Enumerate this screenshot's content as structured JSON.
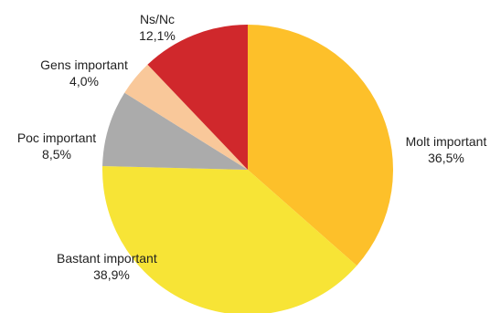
{
  "chart_data": {
    "type": "pie",
    "slices": [
      {
        "name": "Molt important",
        "value": 36.5,
        "label": "36,5%",
        "color": "#FDC02A"
      },
      {
        "name": "Bastant important",
        "value": 38.9,
        "label": "38,9%",
        "color": "#F7E436"
      },
      {
        "name": "Poc important",
        "value": 8.5,
        "label": "8,5%",
        "color": "#ABABAB"
      },
      {
        "name": "Gens important",
        "value": 4.0,
        "label": "4,0%",
        "color": "#F9C89A"
      },
      {
        "name": "Ns/Nc",
        "value": 12.1,
        "label": "12,1%",
        "color": "#D0282C"
      }
    ],
    "start_angle_deg": 0,
    "direction": "clockwise"
  }
}
